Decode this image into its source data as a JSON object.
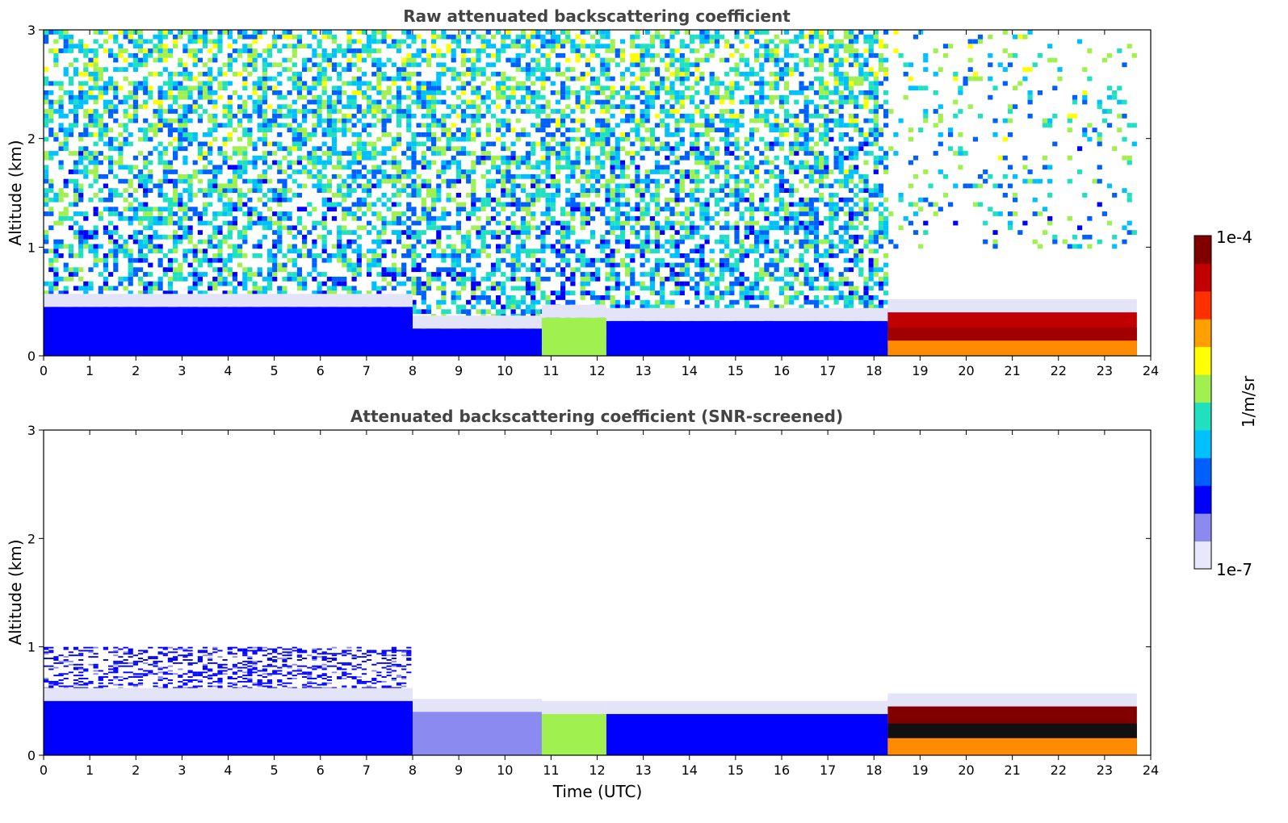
{
  "chart_data": [
    {
      "type": "heatmap",
      "title": "Raw attenuated backscattering coefficient",
      "xlabel": "",
      "ylabel": "Altitude (km)",
      "xlim": [
        0,
        24
      ],
      "ylim": [
        0,
        3
      ],
      "x_ticks": [
        "0",
        "1",
        "2",
        "3",
        "4",
        "5",
        "6",
        "7",
        "8",
        "9",
        "10",
        "11",
        "12",
        "13",
        "14",
        "15",
        "16",
        "17",
        "18",
        "19",
        "20",
        "21",
        "22",
        "23",
        "24"
      ],
      "y_ticks": [
        "0",
        "1",
        "2",
        "3"
      ],
      "color_scale": "log",
      "data_extent_hours": [
        0,
        23.7
      ],
      "layers": [
        {
          "t0": 0,
          "t1": 8,
          "top_km": 0.45,
          "level": 0.22
        },
        {
          "t0": 8,
          "t1": 10.8,
          "top_km": 0.25,
          "level": 0.18
        },
        {
          "t0": 10.8,
          "t1": 12.2,
          "top_km": 0.35,
          "level": 0.5
        },
        {
          "t0": 12.2,
          "t1": 18.3,
          "top_km": 0.32,
          "level": 0.2
        },
        {
          "t0": 18.3,
          "t1": 23.7,
          "top_km": 0.4,
          "level": 0.9
        }
      ],
      "noise_top_km": 3,
      "noise_cutoff_hours": 18.3
    },
    {
      "type": "heatmap",
      "title": "Attenuated backscattering coefficient (SNR-screened)",
      "xlabel": "Time (UTC)",
      "ylabel": "Altitude (km)",
      "xlim": [
        0,
        24
      ],
      "ylim": [
        0,
        3
      ],
      "x_ticks": [
        "0",
        "1",
        "2",
        "3",
        "4",
        "5",
        "6",
        "7",
        "8",
        "9",
        "10",
        "11",
        "12",
        "13",
        "14",
        "15",
        "16",
        "17",
        "18",
        "19",
        "20",
        "21",
        "22",
        "23",
        "24"
      ],
      "y_ticks": [
        "0",
        "1",
        "2",
        "3"
      ],
      "color_scale": "log",
      "data_extent_hours": [
        0,
        23.7
      ],
      "layers": [
        {
          "t0": 0,
          "t1": 8,
          "top_km": 0.5,
          "level": 0.22
        },
        {
          "t0": 8,
          "t1": 10.8,
          "top_km": 0.4,
          "level": 0.12
        },
        {
          "t0": 10.8,
          "t1": 12.2,
          "top_km": 0.38,
          "level": 0.5
        },
        {
          "t0": 12.2,
          "t1": 18.3,
          "top_km": 0.38,
          "level": 0.2
        },
        {
          "t0": 18.3,
          "t1": 23.7,
          "top_km": 0.45,
          "level": 0.95
        }
      ],
      "noise_top_km": 1.0,
      "noise_cutoff_hours": 8
    }
  ],
  "colorbar": {
    "label": "1/m/sr",
    "max_label": "1e-4",
    "min_label": "1e-7",
    "min_value": 1e-07,
    "max_value": 0.0001,
    "colormap": [
      "#e8e8fa",
      "#8a8af0",
      "#0000ff",
      "#0060ff",
      "#00c0ff",
      "#20e0c0",
      "#a0f050",
      "#ffff00",
      "#ffa000",
      "#ff3000",
      "#c00000",
      "#800000"
    ]
  }
}
